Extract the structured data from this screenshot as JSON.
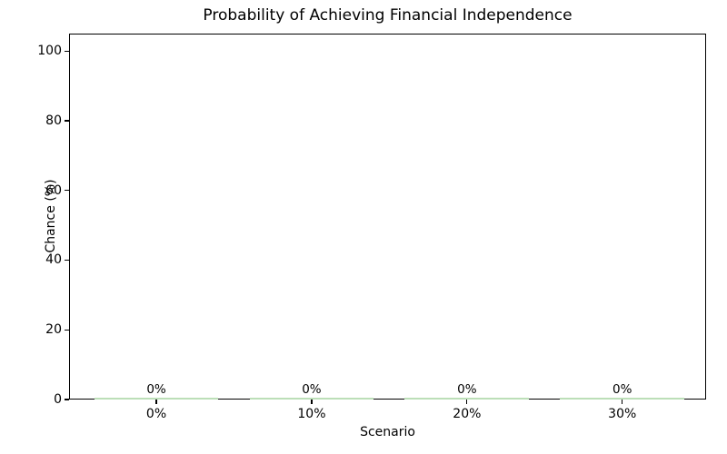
{
  "chart_data": {
    "type": "bar",
    "title": "Probability of Achieving Financial Independence",
    "xlabel": "Scenario",
    "ylabel": "Chance (%)",
    "categories": [
      "0%",
      "10%",
      "20%",
      "30%"
    ],
    "values": [
      0,
      0,
      0,
      0
    ],
    "bar_value_labels": [
      "0%",
      "0%",
      "0%",
      "0%"
    ],
    "yticks": [
      0,
      20,
      40,
      60,
      80,
      100
    ],
    "ylim": [
      0,
      105
    ],
    "grid": false,
    "legend_position": "none",
    "bar_color": "#bcdfb8",
    "axis_color": "#000000",
    "text_color": "#000000",
    "background_color": "#ffffff"
  }
}
